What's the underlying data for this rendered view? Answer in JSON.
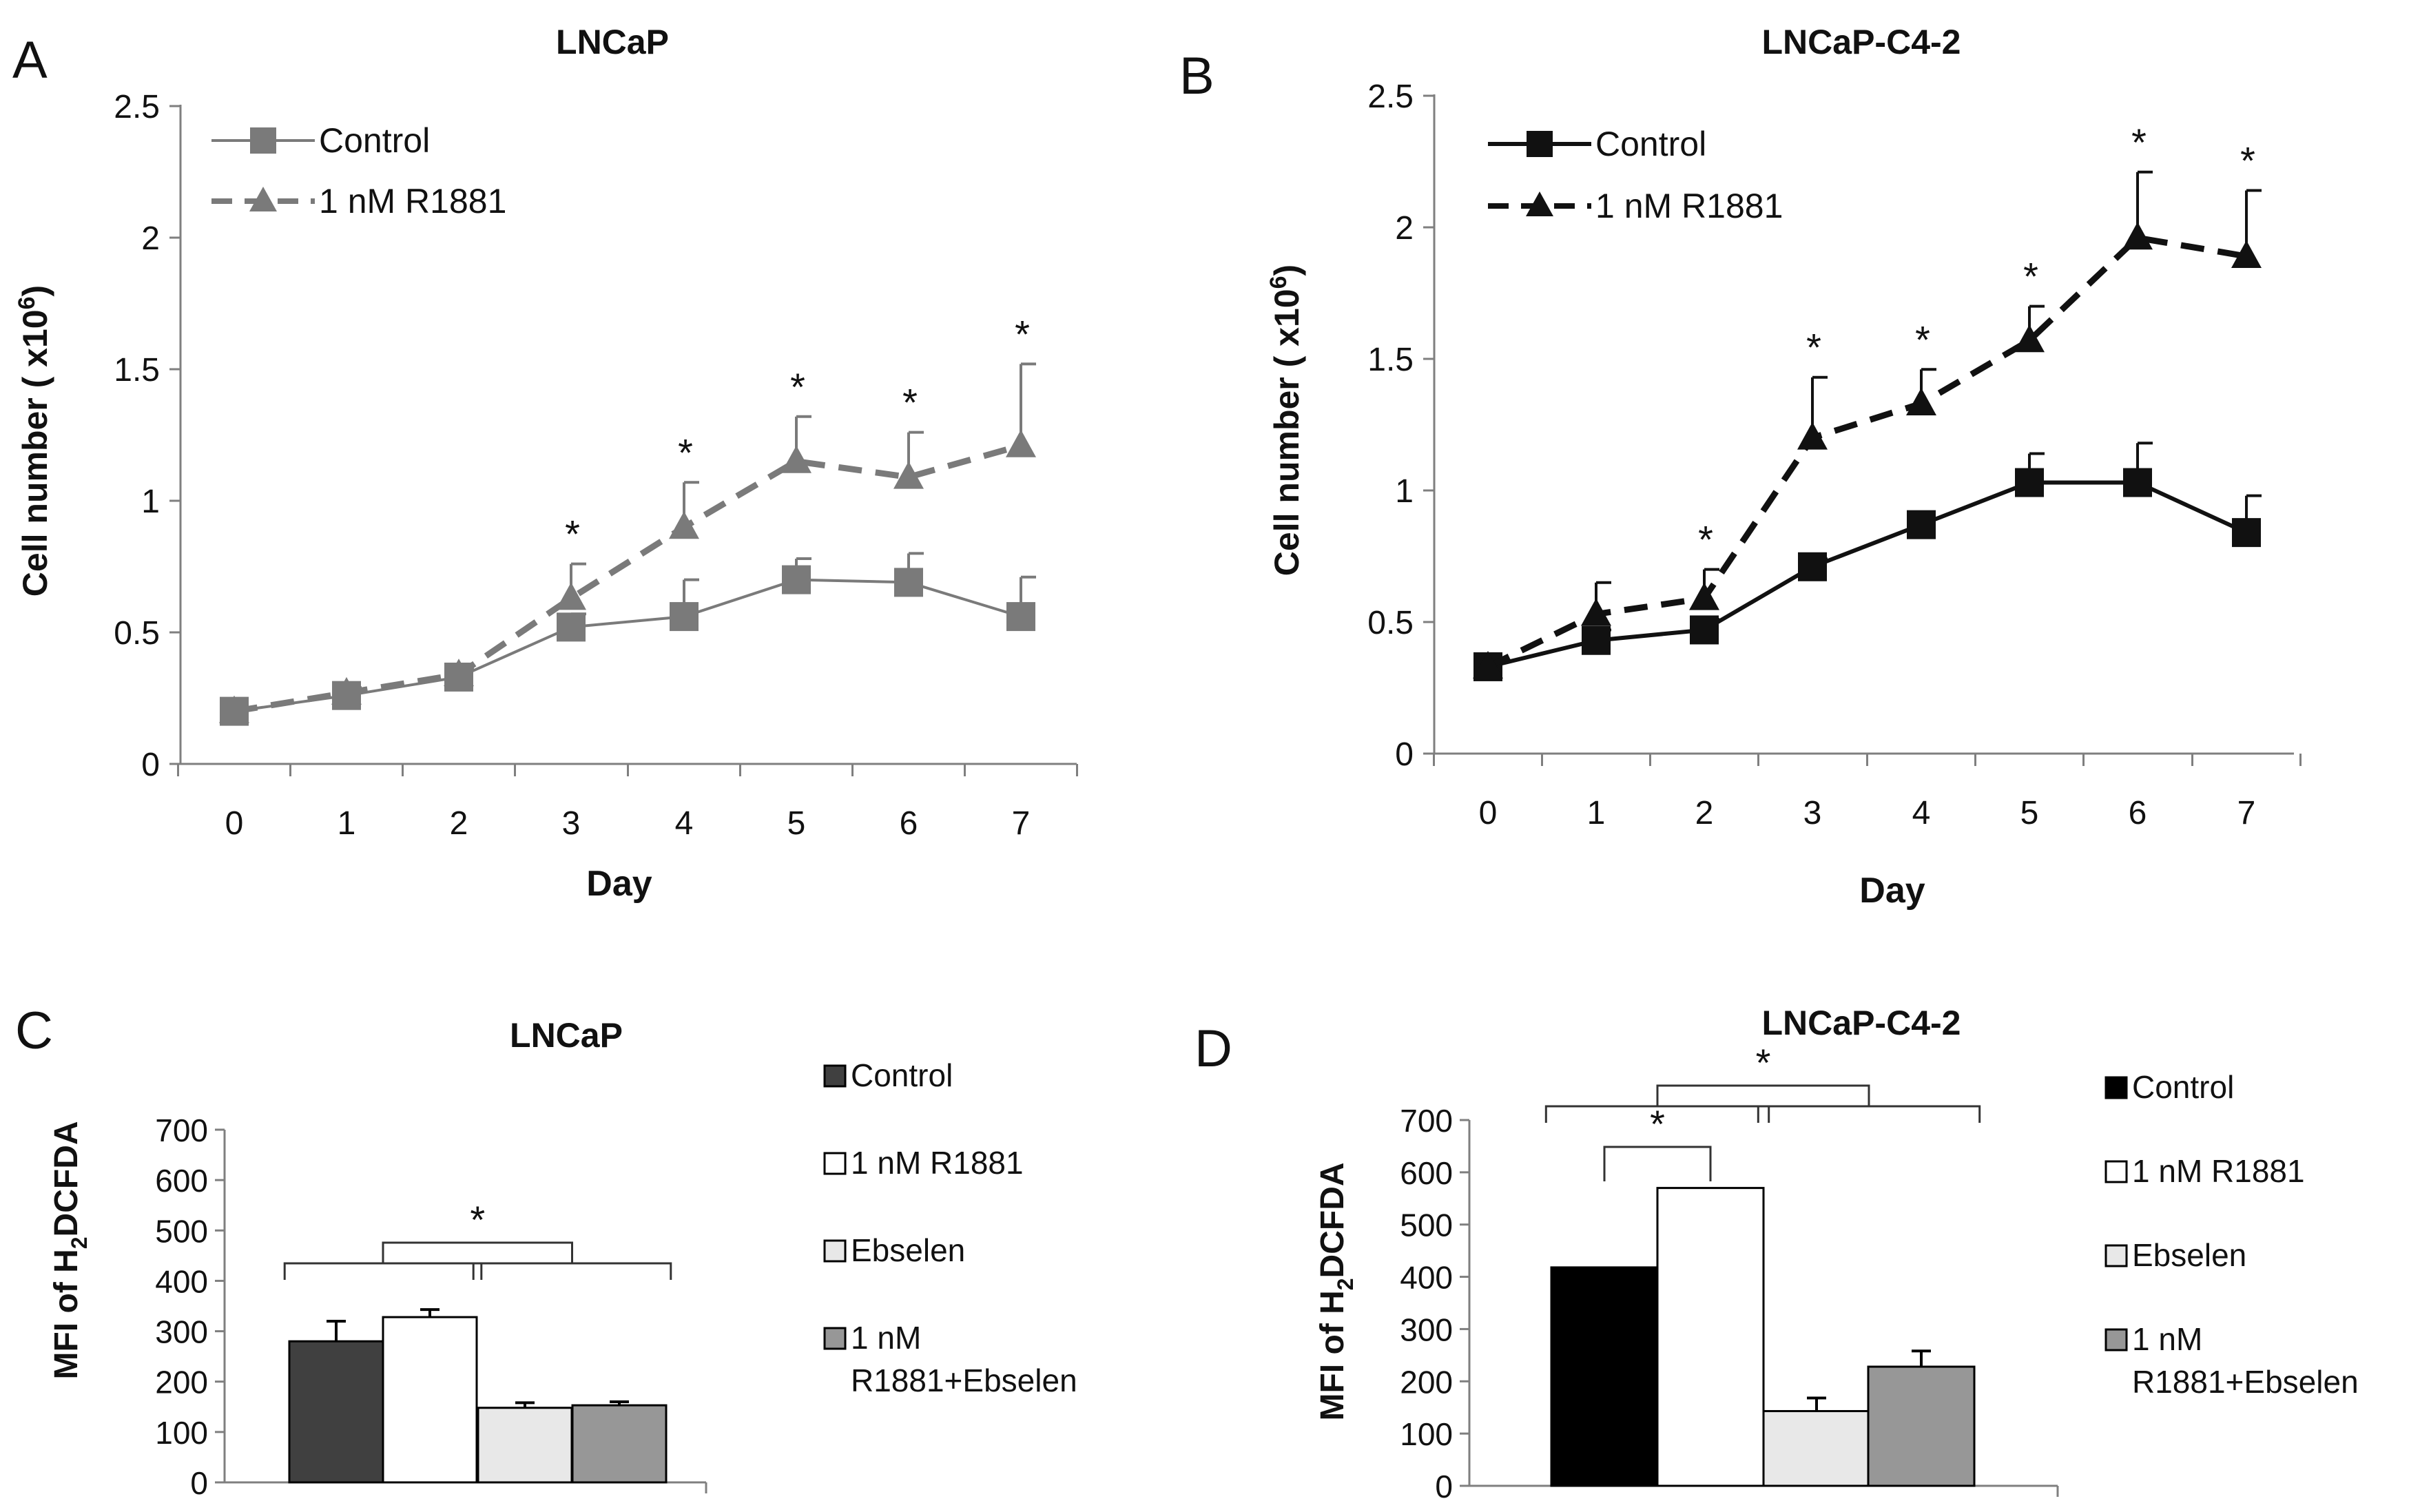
{
  "colors": {
    "gray_series": "#7a7a7a",
    "black_series": "#111111",
    "bar_control_C": "#404040",
    "bar_control_D": "#000000",
    "bar_r1881": "#ffffff",
    "bar_ebselen": "#e8e8e8",
    "bar_combo": "#979797"
  },
  "chart_data": [
    {
      "panel": "A",
      "type": "line",
      "title": "LNCaP",
      "xlabel": "Day",
      "ylabel": "Cell number ( x10",
      "ylabel_sup": "6",
      "ylabel_end": ")",
      "x": [
        0,
        1,
        2,
        3,
        4,
        5,
        6,
        7
      ],
      "x_ticks": [
        "0",
        "1",
        "2",
        "3",
        "4",
        "5",
        "6",
        "7"
      ],
      "ylim": [
        0,
        2.5
      ],
      "y_ticks": [
        "0",
        "0.5",
        "1",
        "1.5",
        "2",
        "2.5"
      ],
      "legend": "top-left",
      "significance_marker": "*",
      "series": [
        {
          "name": "Control",
          "values": [
            0.2,
            0.26,
            0.33,
            0.52,
            0.56,
            0.7,
            0.69,
            0.56
          ],
          "errors": [
            0.01,
            0.02,
            0.03,
            0.05,
            0.14,
            0.08,
            0.11,
            0.15
          ],
          "style": "solid",
          "marker": "square",
          "color": "#7a7a7a",
          "significant": [
            false,
            false,
            false,
            false,
            false,
            false,
            false,
            false
          ]
        },
        {
          "name": "1 nM R1881",
          "values": [
            0.2,
            0.27,
            0.34,
            0.63,
            0.9,
            1.15,
            1.09,
            1.21
          ],
          "errors": [
            0.01,
            0.02,
            0.03,
            0.13,
            0.17,
            0.17,
            0.17,
            0.31
          ],
          "style": "dashed",
          "marker": "triangle",
          "color": "#7a7a7a",
          "significant": [
            false,
            false,
            false,
            true,
            true,
            true,
            true,
            true
          ]
        }
      ]
    },
    {
      "panel": "B",
      "type": "line",
      "title": "LNCaP-C4-2",
      "xlabel": "Day",
      "ylabel": "Cell number ( x10",
      "ylabel_sup": "6",
      "ylabel_end": ")",
      "x": [
        0,
        1,
        2,
        3,
        4,
        5,
        6,
        7
      ],
      "x_ticks": [
        "0",
        "1",
        "2",
        "3",
        "4",
        "5",
        "6",
        "7"
      ],
      "ylim": [
        0,
        2.5
      ],
      "y_ticks": [
        "0",
        "0.5",
        "1",
        "1.5",
        "2",
        "2.5"
      ],
      "legend": "top-left",
      "significance_marker": "*",
      "series": [
        {
          "name": "Control",
          "values": [
            0.33,
            0.43,
            0.47,
            0.71,
            0.87,
            1.03,
            1.03,
            0.84
          ],
          "errors": [
            0.02,
            0.04,
            0.04,
            0.03,
            0.02,
            0.11,
            0.15,
            0.14
          ],
          "style": "solid",
          "marker": "square",
          "color": "#111111",
          "significant": [
            false,
            false,
            false,
            false,
            false,
            false,
            false,
            false
          ]
        },
        {
          "name": "1 nM R1881",
          "values": [
            0.33,
            0.53,
            0.59,
            1.2,
            1.33,
            1.57,
            1.96,
            1.89
          ],
          "errors": [
            0.02,
            0.12,
            0.11,
            0.23,
            0.13,
            0.13,
            0.25,
            0.25
          ],
          "style": "dashed",
          "marker": "triangle",
          "color": "#111111",
          "significant": [
            false,
            false,
            true,
            true,
            true,
            true,
            true,
            true
          ]
        }
      ]
    },
    {
      "panel": "C",
      "type": "bar",
      "title": "LNCaP",
      "ylabel": "MFI of H",
      "ylabel_sub": "2",
      "ylabel_end": "DCFDA",
      "ylim": [
        0,
        700
      ],
      "y_ticks": [
        "0",
        "100",
        "200",
        "300",
        "400",
        "500",
        "600",
        "700"
      ],
      "categories": [
        "Control",
        "1 nM R1881",
        "Ebselen",
        "1 nM R1881+Ebselen"
      ],
      "legend_labels": [
        [
          "Control"
        ],
        [
          "1 nM R1881"
        ],
        [
          "Ebselen"
        ],
        [
          "1 nM",
          "R1881+Ebselen"
        ]
      ],
      "values": [
        280,
        328,
        148,
        153
      ],
      "errors": [
        40,
        15,
        10,
        7
      ],
      "colors": [
        "#404040",
        "#ffffff",
        "#e8e8e8",
        "#979797"
      ],
      "significance": [
        {
          "marker": "*",
          "groups": [
            [
              0,
              1
            ],
            [
              2,
              3
            ]
          ]
        }
      ],
      "legend": "right"
    },
    {
      "panel": "D",
      "type": "bar",
      "title": "LNCaP-C4-2",
      "ylabel": "MFI of H",
      "ylabel_sub": "2",
      "ylabel_end": "DCFDA",
      "ylim": [
        0,
        700
      ],
      "y_ticks": [
        "0",
        "100",
        "200",
        "300",
        "400",
        "500",
        "600",
        "700"
      ],
      "categories": [
        "Control",
        "1 nM R1881",
        "Ebselen",
        "1 nM R1881+Ebselen"
      ],
      "legend_labels": [
        [
          "Control"
        ],
        [
          "1 nM R1881"
        ],
        [
          "Ebselen"
        ],
        [
          "1 nM",
          "R1881+Ebselen"
        ]
      ],
      "values": [
        418,
        570,
        143,
        228
      ],
      "errors": [
        0,
        0,
        25,
        30
      ],
      "colors": [
        "#000000",
        "#ffffff",
        "#e8e8e8",
        "#979797"
      ],
      "significance": [
        {
          "marker": "*",
          "groups": [
            [
              0
            ],
            [
              1
            ]
          ]
        },
        {
          "marker": "*",
          "groups": [
            [
              0,
              1
            ],
            [
              2,
              3
            ]
          ]
        }
      ],
      "legend": "right"
    }
  ]
}
